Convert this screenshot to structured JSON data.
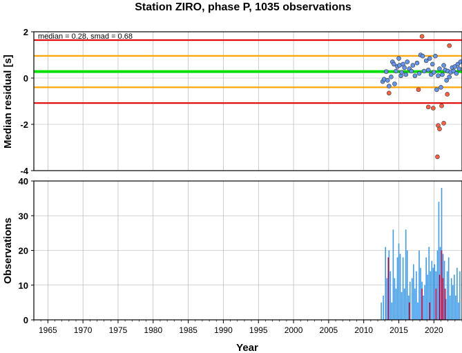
{
  "chart_data": [
    {
      "type": "scatter",
      "title": "Station ZIRO, phase P, 1035 observations",
      "ylabel": "Median residual [s]",
      "annotation": "median = 0.28, smad = 0.68",
      "xlim": [
        1963,
        2024
      ],
      "ylim": [
        -4,
        2
      ],
      "yticks": [
        2,
        0,
        -2,
        -4
      ],
      "grid": true,
      "reference_lines": [
        {
          "y": 1.64,
          "color": "#e00000"
        },
        {
          "y": 0.96,
          "color": "#ffa500"
        },
        {
          "y": 0.28,
          "color": "#00e000"
        },
        {
          "y": -0.4,
          "color": "#ffa500"
        },
        {
          "y": -1.08,
          "color": "#e00000"
        }
      ],
      "series": [
        {
          "color": "#6495ed",
          "points": [
            [
              2012.7,
              -0.15
            ],
            [
              2012.9,
              -0.05
            ],
            [
              2013.2,
              0.28
            ],
            [
              2013.4,
              -0.1
            ],
            [
              2013.6,
              -0.35
            ],
            [
              2013.9,
              0.05
            ],
            [
              2014.1,
              0.7
            ],
            [
              2014.3,
              0.6
            ],
            [
              2014.4,
              -0.25
            ],
            [
              2014.6,
              0.3
            ],
            [
              2014.8,
              0.5
            ],
            [
              2015.0,
              0.85
            ],
            [
              2015.1,
              0.55
            ],
            [
              2015.3,
              0.1
            ],
            [
              2015.4,
              0.25
            ],
            [
              2015.6,
              0.6
            ],
            [
              2015.8,
              0.45
            ],
            [
              2016.0,
              0.15
            ],
            [
              2016.2,
              0.7
            ],
            [
              2016.5,
              0.4
            ],
            [
              2016.8,
              0.3
            ],
            [
              2017.0,
              0.55
            ],
            [
              2017.3,
              0.1
            ],
            [
              2017.6,
              0.65
            ],
            [
              2017.9,
              0.2
            ],
            [
              2018.1,
              1.0
            ],
            [
              2018.4,
              0.95
            ],
            [
              2018.6,
              0.3
            ],
            [
              2018.9,
              0.75
            ],
            [
              2019.2,
              0.35
            ],
            [
              2019.4,
              0.85
            ],
            [
              2019.6,
              0.15
            ],
            [
              2019.8,
              0.6
            ],
            [
              2020.0,
              0.25
            ],
            [
              2020.2,
              0.95
            ],
            [
              2020.4,
              -0.5
            ],
            [
              2020.6,
              0.1
            ],
            [
              2020.8,
              0.4
            ],
            [
              2021.0,
              -0.4
            ],
            [
              2021.2,
              0.15
            ],
            [
              2021.4,
              0.55
            ],
            [
              2021.6,
              0.35
            ],
            [
              2021.8,
              -0.1
            ],
            [
              2022.0,
              0.3
            ],
            [
              2022.2,
              0.05
            ],
            [
              2022.4,
              0.25
            ],
            [
              2022.6,
              0.45
            ],
            [
              2022.8,
              0.3
            ],
            [
              2023.0,
              0.5
            ],
            [
              2023.2,
              0.2
            ],
            [
              2023.4,
              0.6
            ],
            [
              2023.6,
              0.4
            ],
            [
              2023.8,
              0.7
            ]
          ]
        },
        {
          "color": "#ff6040",
          "points": [
            [
              2013.6,
              -0.65
            ],
            [
              2017.8,
              -0.5
            ],
            [
              2018.3,
              1.8
            ],
            [
              2019.2,
              -1.25
            ],
            [
              2019.9,
              -1.3
            ],
            [
              2020.6,
              -2.05
            ],
            [
              2020.8,
              -2.2
            ],
            [
              2021.1,
              -1.2
            ],
            [
              2021.4,
              -1.95
            ],
            [
              2020.5,
              -3.4
            ],
            [
              2022.2,
              1.4
            ],
            [
              2021.9,
              -0.7
            ]
          ]
        }
      ]
    },
    {
      "type": "bar",
      "xlabel": "Year",
      "ylabel": "Observations",
      "xlim": [
        1963,
        2024
      ],
      "ylim": [
        0,
        40
      ],
      "xticks": [
        1965,
        1970,
        1975,
        1980,
        1985,
        1990,
        1995,
        2000,
        2005,
        2010,
        2015,
        2020
      ],
      "yticks": [
        0,
        10,
        20,
        30,
        40
      ],
      "grid": true,
      "series": [
        {
          "color": "#3c9bf0",
          "x": [
            2012.5,
            2012.8,
            2013.1,
            2013.3,
            2013.6,
            2013.8,
            2014.0,
            2014.2,
            2014.4,
            2014.6,
            2014.8,
            2015.0,
            2015.2,
            2015.4,
            2015.6,
            2015.8,
            2016.0,
            2016.2,
            2016.4,
            2016.6,
            2016.9,
            2017.1,
            2017.3,
            2017.5,
            2017.7,
            2017.9,
            2018.1,
            2018.3,
            2018.5,
            2018.7,
            2018.9,
            2019.1,
            2019.3,
            2019.5,
            2019.7,
            2019.9,
            2020.1,
            2020.3,
            2020.5,
            2020.7,
            2020.9,
            2021.1,
            2021.3,
            2021.5,
            2021.7,
            2021.9,
            2022.1,
            2022.3,
            2022.5,
            2022.7,
            2022.9,
            2023.1,
            2023.3,
            2023.5,
            2023.7
          ],
          "values": [
            5,
            7,
            21,
            12,
            20,
            14,
            5,
            26,
            12,
            9,
            18,
            22,
            19,
            8,
            18,
            9,
            26,
            20,
            7,
            11,
            12,
            16,
            9,
            14,
            5,
            20,
            15,
            11,
            7,
            10,
            18,
            13,
            21,
            14,
            17,
            15,
            16,
            14,
            20,
            34,
            21,
            38,
            19,
            17,
            6,
            14,
            18,
            7,
            12,
            10,
            13,
            7,
            15,
            5,
            14
          ]
        },
        {
          "color": "#cc0033",
          "x": [
            2013.5,
            2016.5,
            2018.3,
            2019.4,
            2020.3,
            2020.8,
            2021.1,
            2021.3,
            2021.6
          ],
          "values": [
            18,
            5,
            9,
            5,
            9,
            13,
            20,
            12,
            9
          ]
        }
      ]
    }
  ]
}
